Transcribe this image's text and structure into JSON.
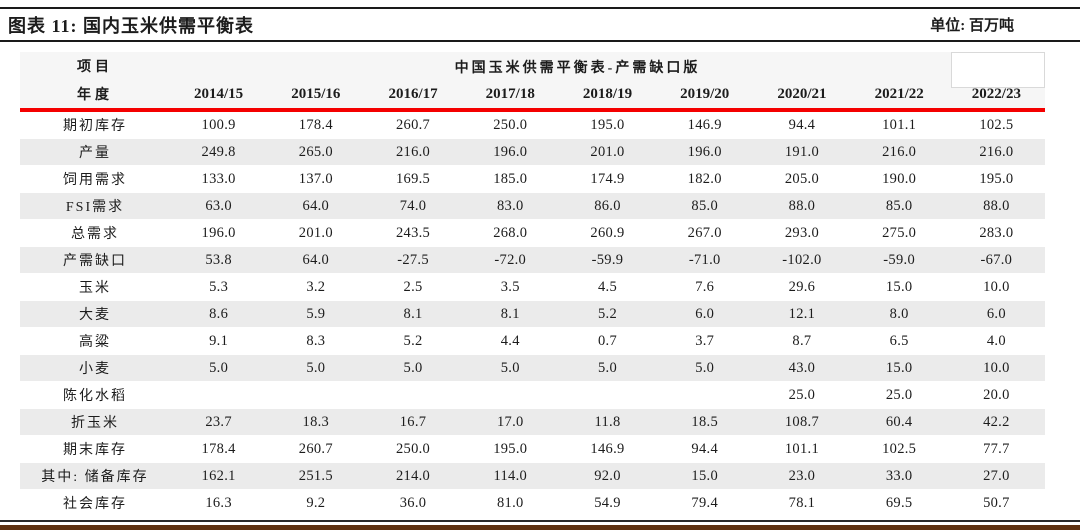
{
  "header": {
    "figure_label": "图表 11: 国内玉米供需平衡表",
    "unit_label": "单位: 百万吨"
  },
  "table": {
    "span_title": "中国玉米供需平衡表-产需缺口版",
    "corner_top": "项目",
    "corner_bottom": "年度",
    "years": [
      "2014/15",
      "2015/16",
      "2016/17",
      "2017/18",
      "2018/19",
      "2019/20",
      "2020/21",
      "2021/22",
      "2022/23"
    ],
    "rows": [
      {
        "label": "期初库存",
        "values": [
          "100.9",
          "178.4",
          "260.7",
          "250.0",
          "195.0",
          "146.9",
          "94.4",
          "101.1",
          "102.5"
        ]
      },
      {
        "label": "产量",
        "values": [
          "249.8",
          "265.0",
          "216.0",
          "196.0",
          "201.0",
          "196.0",
          "191.0",
          "216.0",
          "216.0"
        ]
      },
      {
        "label": "饲用需求",
        "values": [
          "133.0",
          "137.0",
          "169.5",
          "185.0",
          "174.9",
          "182.0",
          "205.0",
          "190.0",
          "195.0"
        ]
      },
      {
        "label": "FSI需求",
        "values": [
          "63.0",
          "64.0",
          "74.0",
          "83.0",
          "86.0",
          "85.0",
          "88.0",
          "85.0",
          "88.0"
        ]
      },
      {
        "label": "总需求",
        "values": [
          "196.0",
          "201.0",
          "243.5",
          "268.0",
          "260.9",
          "267.0",
          "293.0",
          "275.0",
          "283.0"
        ]
      },
      {
        "label": "产需缺口",
        "values": [
          "53.8",
          "64.0",
          "-27.5",
          "-72.0",
          "-59.9",
          "-71.0",
          "-102.0",
          "-59.0",
          "-67.0"
        ]
      },
      {
        "label": "玉米",
        "values": [
          "5.3",
          "3.2",
          "2.5",
          "3.5",
          "4.5",
          "7.6",
          "29.6",
          "15.0",
          "10.0"
        ]
      },
      {
        "label": "大麦",
        "values": [
          "8.6",
          "5.9",
          "8.1",
          "8.1",
          "5.2",
          "6.0",
          "12.1",
          "8.0",
          "6.0"
        ]
      },
      {
        "label": "高粱",
        "values": [
          "9.1",
          "8.3",
          "5.2",
          "4.4",
          "0.7",
          "3.7",
          "8.7",
          "6.5",
          "4.0"
        ]
      },
      {
        "label": "小麦",
        "values": [
          "5.0",
          "5.0",
          "5.0",
          "5.0",
          "5.0",
          "5.0",
          "43.0",
          "15.0",
          "10.0"
        ]
      },
      {
        "label": "陈化水稻",
        "values": [
          "",
          "",
          "",
          "",
          "",
          "",
          "25.0",
          "25.0",
          "20.0"
        ]
      },
      {
        "label": "折玉米",
        "values": [
          "23.7",
          "18.3",
          "16.7",
          "17.0",
          "11.8",
          "18.5",
          "108.7",
          "60.4",
          "42.2"
        ]
      },
      {
        "label": "期末库存",
        "values": [
          "178.4",
          "260.7",
          "250.0",
          "195.0",
          "146.9",
          "94.4",
          "101.1",
          "102.5",
          "77.7"
        ]
      },
      {
        "label": "其中: 储备库存",
        "values": [
          "162.1",
          "251.5",
          "214.0",
          "114.0",
          "92.0",
          "15.0",
          "23.0",
          "33.0",
          "27.0"
        ]
      },
      {
        "label": "社会库存",
        "values": [
          "16.3",
          "9.2",
          "36.0",
          "81.0",
          "54.9",
          "79.4",
          "78.1",
          "69.5",
          "50.7"
        ]
      }
    ]
  },
  "colors": {
    "accent_red": "#f40000",
    "stripe_gray": "#ebebeb",
    "bottom_bar_brown": "#5e3110",
    "rule_black": "#1a1a1a"
  }
}
